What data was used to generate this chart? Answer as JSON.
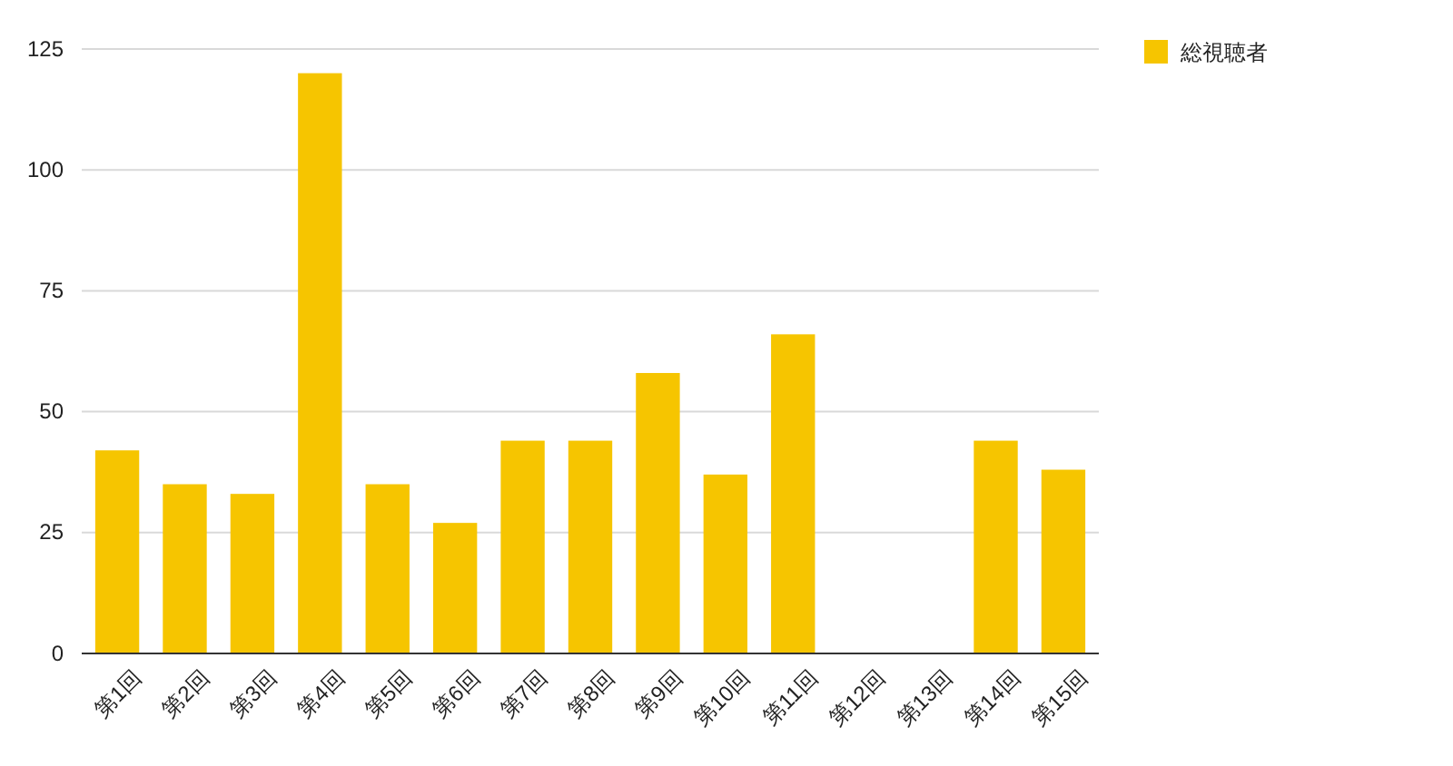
{
  "chart_data": {
    "type": "bar",
    "categories": [
      "第1回",
      "第2回",
      "第3回",
      "第4回",
      "第5回",
      "第6回",
      "第7回",
      "第8回",
      "第9回",
      "第10回",
      "第11回",
      "第12回",
      "第13回",
      "第14回",
      "第15回"
    ],
    "series": [
      {
        "name": "総視聴者",
        "color": "#f6c500",
        "values": [
          42,
          35,
          33,
          120,
          35,
          27,
          44,
          44,
          58,
          37,
          66,
          0,
          0,
          44,
          38
        ]
      }
    ],
    "ylim": [
      0,
      125
    ],
    "yticks": [
      0,
      25,
      50,
      75,
      100,
      125
    ],
    "grid": "y",
    "legend": "top right"
  }
}
